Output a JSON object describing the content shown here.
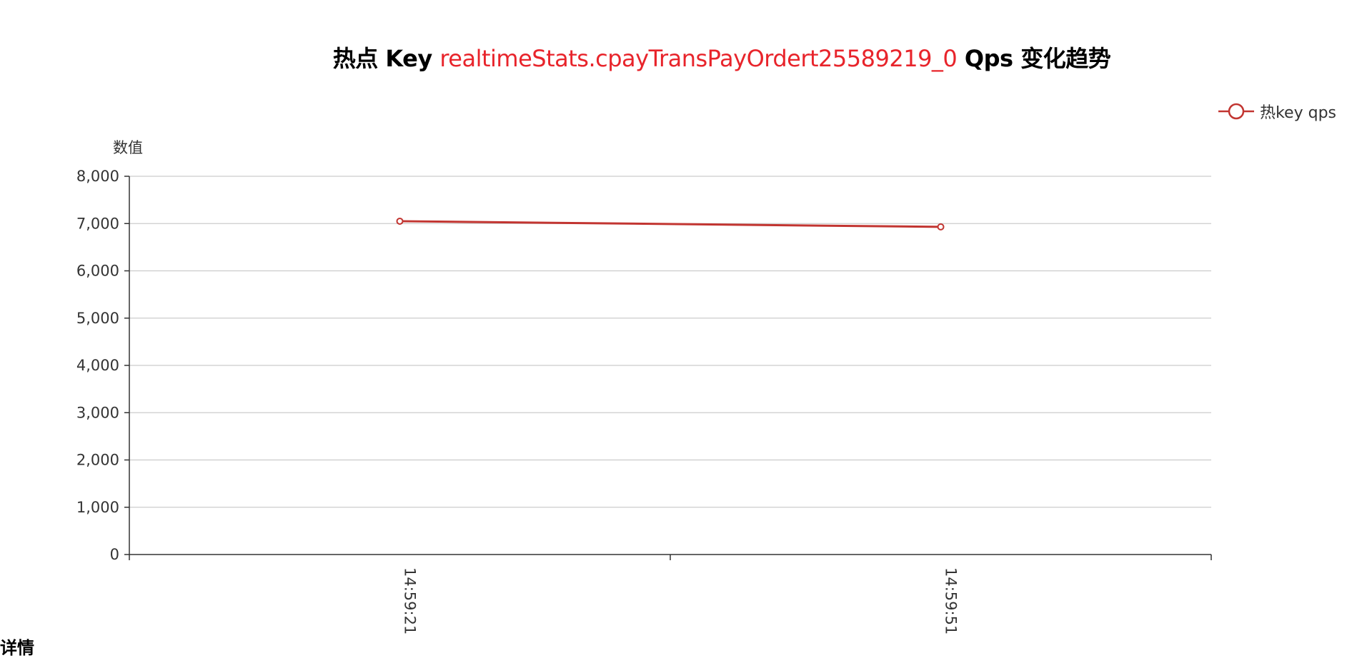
{
  "title": {
    "prefix": "热点 Key",
    "key": "realtimeStats.cpayTransPayOrdert25589219_0",
    "suffix": "Qps 变化趋势",
    "key_color": "#e8242b"
  },
  "legend": {
    "label": "热key qps"
  },
  "bottom_fragment": "详情",
  "chart_data": {
    "type": "line",
    "title": "热点 Key realtimeStats.cpayTransPayOrdert25589219_0 Qps 变化趋势",
    "ylabel": "数值",
    "xlabel": "",
    "ylim": [
      0,
      8000
    ],
    "yticks": [
      0,
      1000,
      2000,
      3000,
      4000,
      5000,
      6000,
      7000,
      8000
    ],
    "ytick_labels": [
      "0",
      "1,000",
      "2,000",
      "3,000",
      "4,000",
      "5,000",
      "6,000",
      "7,000",
      "8,000"
    ],
    "categories": [
      "14:59:21",
      "14:59:51"
    ],
    "series": [
      {
        "name": "热key qps",
        "values": [
          7050,
          6930
        ],
        "color": "#c23531"
      }
    ],
    "grid": true,
    "legend_position": "top-right"
  }
}
